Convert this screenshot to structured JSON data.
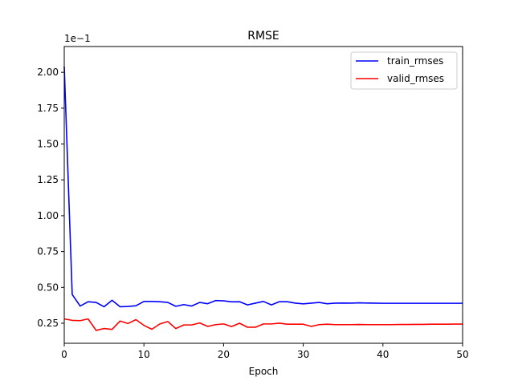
{
  "chart_data": {
    "type": "line",
    "title": "RMSE",
    "xlabel": "Epoch",
    "ylabel": "",
    "y_offset_label": "1e−1",
    "xlim": [
      0,
      50
    ],
    "ylim": [
      0.11,
      2.18
    ],
    "x_ticks": [
      0,
      10,
      20,
      30,
      40,
      50
    ],
    "y_ticks": [
      0.25,
      0.5,
      0.75,
      1.0,
      1.25,
      1.5,
      1.75,
      2.0
    ],
    "y_tick_labels": [
      "0.25",
      "0.50",
      "0.75",
      "1.00",
      "1.25",
      "1.50",
      "1.75",
      "2.00"
    ],
    "x_tick_labels": [
      "0",
      "10",
      "20",
      "30",
      "40",
      "50"
    ],
    "grid": false,
    "legend_position": "top-right",
    "x": [
      0,
      1,
      2,
      3,
      4,
      5,
      6,
      7,
      8,
      9,
      10,
      11,
      12,
      13,
      14,
      15,
      16,
      17,
      18,
      19,
      20,
      21,
      22,
      23,
      24,
      25,
      26,
      27,
      28,
      29,
      30,
      31,
      32,
      33,
      34,
      35,
      36,
      37,
      38,
      39,
      40,
      41,
      42,
      43,
      44,
      45,
      46,
      47,
      48,
      49,
      50
    ],
    "series": [
      {
        "name": "train_rmses",
        "color": "#0000ff",
        "values": [
          2.04,
          0.45,
          0.37,
          0.4,
          0.395,
          0.365,
          0.41,
          0.365,
          0.367,
          0.372,
          0.402,
          0.402,
          0.4,
          0.395,
          0.368,
          0.38,
          0.37,
          0.395,
          0.386,
          0.408,
          0.406,
          0.399,
          0.4,
          0.378,
          0.39,
          0.402,
          0.378,
          0.4,
          0.4,
          0.39,
          0.385,
          0.39,
          0.395,
          0.386,
          0.39,
          0.391,
          0.39,
          0.392,
          0.391,
          0.39,
          0.389,
          0.389,
          0.389,
          0.389,
          0.389,
          0.389,
          0.389,
          0.389,
          0.389,
          0.389,
          0.389
        ]
      },
      {
        "name": "valid_rmses",
        "color": "#ff0000",
        "values": [
          0.28,
          0.27,
          0.268,
          0.28,
          0.2,
          0.213,
          0.207,
          0.265,
          0.248,
          0.275,
          0.235,
          0.208,
          0.245,
          0.262,
          0.213,
          0.238,
          0.238,
          0.252,
          0.228,
          0.24,
          0.245,
          0.227,
          0.25,
          0.222,
          0.222,
          0.245,
          0.245,
          0.25,
          0.243,
          0.243,
          0.243,
          0.228,
          0.24,
          0.243,
          0.24,
          0.24,
          0.24,
          0.241,
          0.24,
          0.24,
          0.24,
          0.24,
          0.241,
          0.241,
          0.242,
          0.242,
          0.243,
          0.243,
          0.243,
          0.244,
          0.244
        ]
      }
    ]
  }
}
